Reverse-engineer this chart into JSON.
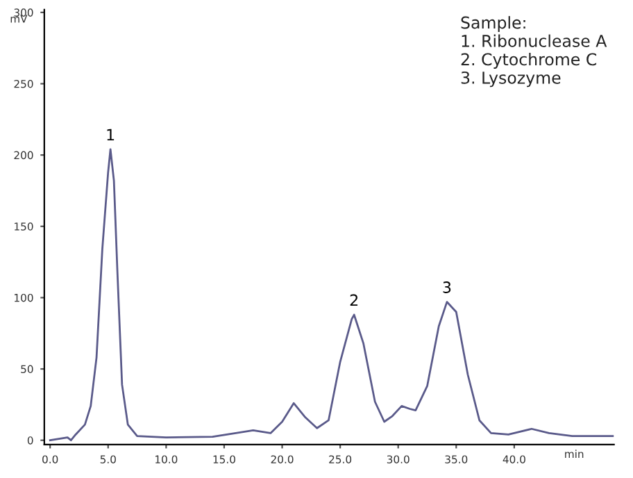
{
  "chart_data": {
    "type": "line",
    "xlabel": "min",
    "ylabel": "mV",
    "x": [
      0,
      1.5,
      1.8,
      2.2,
      3.0,
      3.5,
      4.0,
      4.5,
      5.0,
      5.2,
      5.5,
      5.8,
      6.2,
      6.7,
      7.5,
      10,
      14,
      16,
      17.5,
      19,
      20,
      21,
      22,
      23,
      24,
      25,
      26,
      26.2,
      27,
      28,
      28.8,
      29.5,
      30.3,
      31,
      31.5,
      32.5,
      33.5,
      34.2,
      35,
      36,
      37,
      38,
      39.5,
      41.5,
      43,
      45,
      48.5
    ],
    "series": [
      {
        "color": "#5a5a8a",
        "values": [
          0,
          2,
          0,
          4,
          11,
          24,
          58,
          134,
          188,
          204,
          182,
          118,
          39,
          11,
          3,
          2,
          2.5,
          5,
          7,
          5,
          13,
          26,
          16,
          8.5,
          14,
          55,
          85,
          88,
          68,
          27,
          13,
          17,
          24,
          22,
          21,
          38,
          80,
          97,
          90,
          46,
          14,
          5,
          4,
          8,
          5,
          3,
          3
        ]
      }
    ],
    "xlim": [
      -0.5,
      48.6
    ],
    "ylim": [
      -3,
      302
    ],
    "xticks": [
      {
        "value": 0,
        "label": "0.0"
      },
      {
        "value": 5,
        "label": "5.0"
      },
      {
        "value": 10,
        "label": "10.0"
      },
      {
        "value": 15,
        "label": "15.0"
      },
      {
        "value": 20,
        "label": "20.0"
      },
      {
        "value": 25,
        "label": "25.0"
      },
      {
        "value": 30,
        "label": "30.0"
      },
      {
        "value": 35,
        "label": "35.0"
      },
      {
        "value": 40,
        "label": "40.0"
      }
    ],
    "yticks": [
      0,
      50,
      100,
      150,
      200,
      250,
      300
    ],
    "grid": false,
    "legend": false,
    "marker": "none",
    "line_style": "solid",
    "annotations": [
      {
        "text": "1",
        "x": 5.2,
        "y": 204
      },
      {
        "text": "2",
        "x": 26.2,
        "y": 88
      },
      {
        "text": "3",
        "x": 34.2,
        "y": 97
      },
      "Sample:\n1. Ribonuclease A\n2. Cytochrome C\n3. Lysozyme"
    ]
  }
}
